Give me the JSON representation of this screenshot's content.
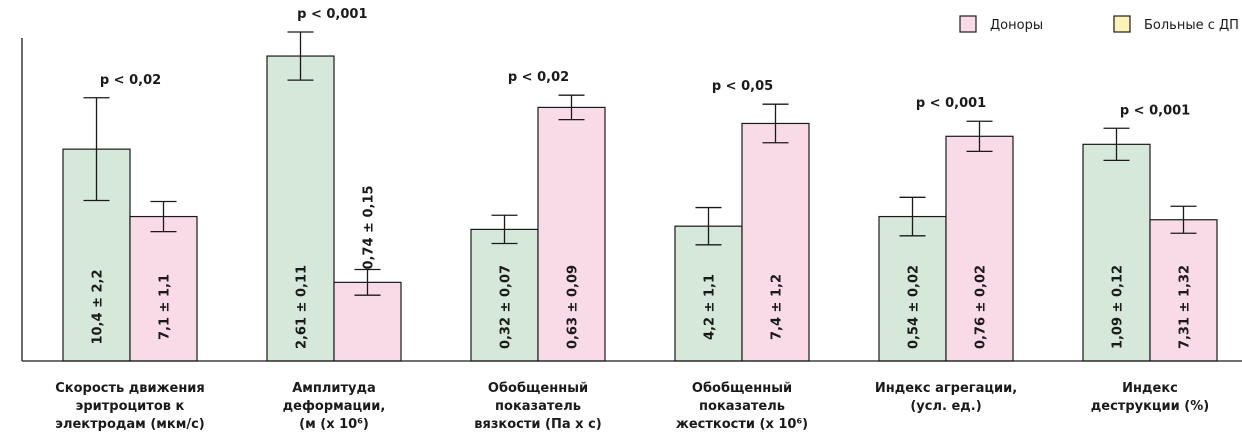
{
  "chart_data": {
    "type": "bar",
    "legend": [
      {
        "label": "Доноры",
        "color": "#f9dbe8"
      },
      {
        "label": "Больные с ДП",
        "color": "#fdf3b8"
      }
    ],
    "legend_position": "top-right",
    "grid": false,
    "groups": [
      {
        "label_lines": [
          "Скорость движения",
          "эритроцитов к",
          "электродам (мкм/с)"
        ],
        "p_value": "p < 0,02",
        "bars": [
          {
            "color": "#d5e8d9",
            "value_label": "10,4 ± 2,2",
            "value": 10.4,
            "err": 2.2,
            "display": 0.66,
            "err_display": 0.16
          },
          {
            "color": "#f9dbe8",
            "value_label": "7,1 ± 1,1",
            "value": 7.1,
            "err": 1.1,
            "display": 0.45,
            "err_display": 0.047
          }
        ]
      },
      {
        "label_lines": [
          "Амплитуда",
          "деформации,",
          "(м (х 10⁶)"
        ],
        "p_value": "p < 0,001",
        "bars": [
          {
            "color": "#d5e8d9",
            "value_label": "2,61 ± 0,11",
            "value": 2.61,
            "err": 0.11,
            "display": 0.95,
            "err_display": 0.075
          },
          {
            "color": "#f9dbe8",
            "value_label": "0,74 ± 0,15",
            "value": 0.74,
            "err": 0.15,
            "display": 0.245,
            "err_display": 0.04,
            "label_outside": true
          }
        ]
      },
      {
        "label_lines": [
          "Обобщенный",
          "показатель",
          "вязкости (Па х с)"
        ],
        "p_value": "p < 0,02",
        "bars": [
          {
            "color": "#d5e8d9",
            "value_label": "0,32 ± 0,07",
            "value": 0.32,
            "err": 0.07,
            "display": 0.41,
            "err_display": 0.044
          },
          {
            "color": "#f9dbe8",
            "value_label": "0,63 ± 0,09",
            "value": 0.63,
            "err": 0.09,
            "display": 0.79,
            "err_display": 0.038
          }
        ]
      },
      {
        "label_lines": [
          "Обобщенный",
          "показатель",
          "жесткости (х 10⁶)"
        ],
        "p_value": "p < 0,05",
        "bars": [
          {
            "color": "#d5e8d9",
            "value_label": "4,2 ± 1,1",
            "value": 4.2,
            "err": 1.1,
            "display": 0.42,
            "err_display": 0.058
          },
          {
            "color": "#f9dbe8",
            "value_label": "7,4 ± 1,2",
            "value": 7.4,
            "err": 1.2,
            "display": 0.74,
            "err_display": 0.06
          }
        ]
      },
      {
        "label_lines": [
          "Индекс агрегации,",
          "(усл. ед.)"
        ],
        "p_value": "p < 0,001",
        "bars": [
          {
            "color": "#d5e8d9",
            "value_label": "0,54 ± 0,02",
            "value": 0.54,
            "err": 0.02,
            "display": 0.45,
            "err_display": 0.06
          },
          {
            "color": "#f9dbe8",
            "value_label": "0,76 ± 0,02",
            "value": 0.76,
            "err": 0.02,
            "display": 0.7,
            "err_display": 0.047
          }
        ]
      },
      {
        "label_lines": [
          "Индекс",
          "деструкции (%)"
        ],
        "p_value": "p < 0,001",
        "bars": [
          {
            "color": "#d5e8d9",
            "value_label": "1,09 ± 0,12",
            "value": 1.09,
            "err": 0.12,
            "display": 0.675,
            "err_display": 0.05
          },
          {
            "color": "#f9dbe8",
            "value_label": "7,31 ± 1,32",
            "value": 7.31,
            "err": 1.32,
            "display": 0.44,
            "err_display": 0.042
          }
        ]
      }
    ]
  }
}
